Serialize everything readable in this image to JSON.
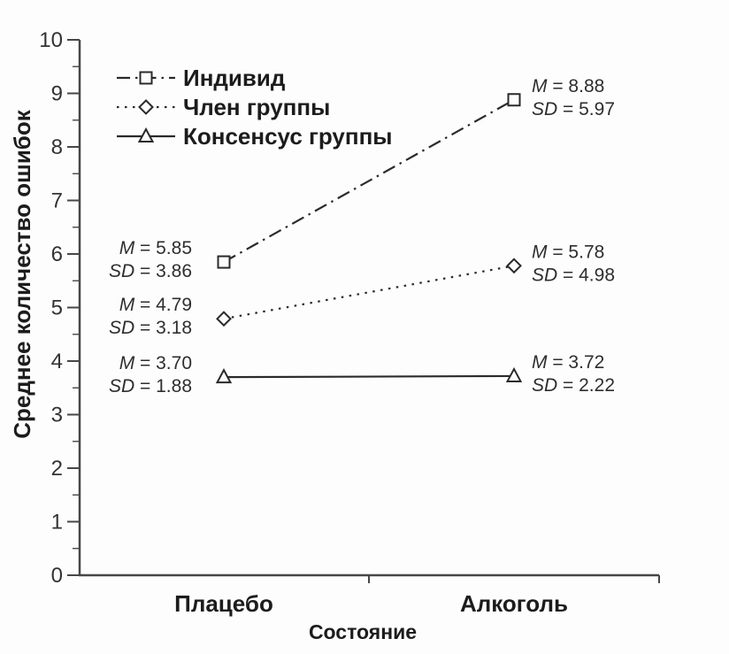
{
  "figure": {
    "background": "#fdfdfd"
  },
  "chart_data": {
    "type": "line",
    "title": "",
    "xlabel": "Состояние",
    "ylabel": "Среднее количество ошибок",
    "categories": [
      "Плацебо",
      "Алкоголь"
    ],
    "ylim": [
      0,
      10
    ],
    "y_tick_step": 1,
    "y_minor_tick_step": 0.5,
    "grid": false,
    "legend_position": "top-left-inside",
    "stat_prefix_mean": "M",
    "stat_prefix_sd": "SD",
    "equals_sign": "=",
    "series": [
      {
        "name": "Индивид",
        "line_style": "dash-dot",
        "marker": "square",
        "values": [
          5.85,
          8.88
        ],
        "sd": [
          3.86,
          5.97
        ]
      },
      {
        "name": "Член группы",
        "line_style": "dotted",
        "marker": "diamond",
        "values": [
          4.79,
          5.78
        ],
        "sd": [
          3.18,
          4.98
        ]
      },
      {
        "name": "Консенсус группы",
        "line_style": "solid",
        "marker": "triangle",
        "values": [
          3.7,
          3.72
        ],
        "sd": [
          1.88,
          2.22
        ]
      }
    ],
    "colors": {
      "line": "#2a2a2a",
      "axis": "#474747",
      "text": "#1c1c1c",
      "tick_text": "#333333",
      "label_text": "#2e2e2e",
      "marker_fill": "#fdfdfd"
    }
  }
}
